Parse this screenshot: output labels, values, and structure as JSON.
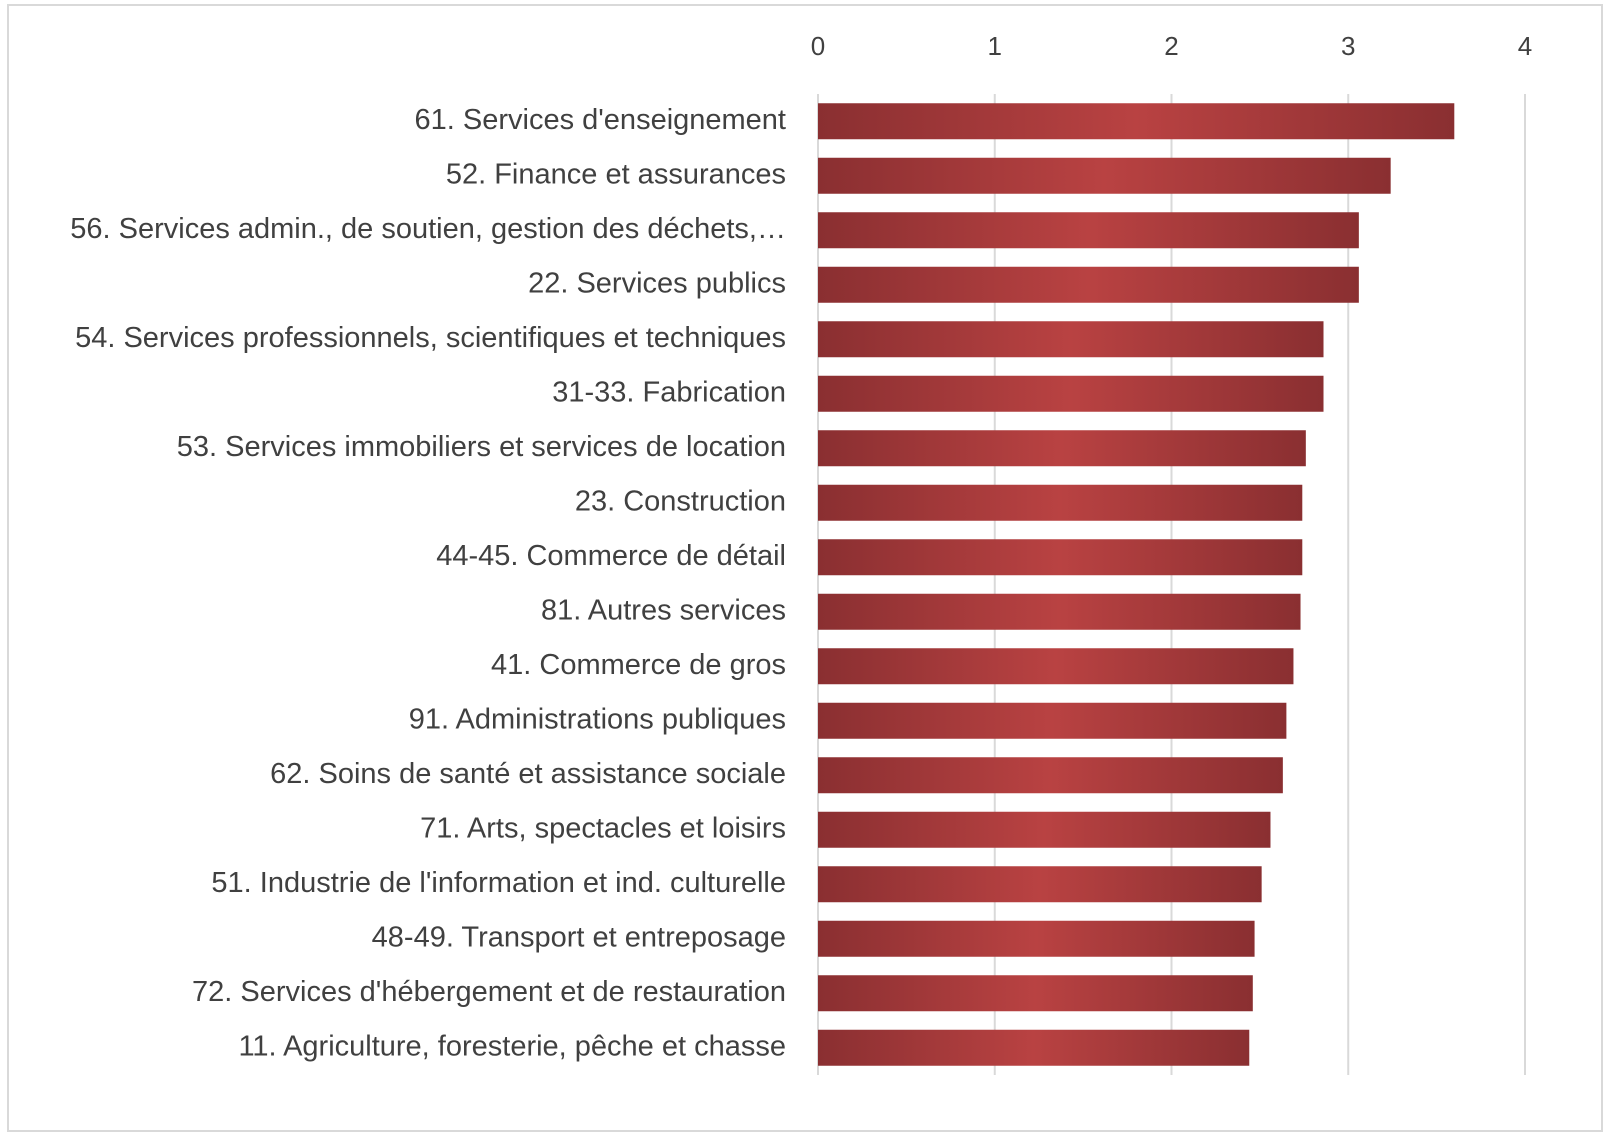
{
  "chart_data": {
    "type": "bar",
    "orientation": "horizontal",
    "categories": [
      "61. Services d'enseignement",
      "52. Finance et assurances",
      "56. Services admin., de soutien, gestion des déchets,…",
      "22. Services publics",
      "54. Services professionnels, scientifiques et techniques",
      "31-33. Fabrication",
      "53. Services immobiliers et services de location",
      "23. Construction",
      "44-45. Commerce de détail",
      "81. Autres services",
      "41. Commerce de gros",
      "91. Administrations publiques",
      "62. Soins de santé et assistance sociale",
      "71. Arts, spectacles et loisirs",
      "51. Industrie de l'information et ind. culturelle",
      "48-49. Transport et entreposage",
      "72. Services d'hébergement et de restauration",
      "11. Agriculture, foresterie, pêche et chasse"
    ],
    "values": [
      3.6,
      3.24,
      3.06,
      3.06,
      2.86,
      2.86,
      2.76,
      2.74,
      2.74,
      2.73,
      2.69,
      2.65,
      2.63,
      2.56,
      2.51,
      2.47,
      2.46,
      2.44
    ],
    "color": "#a63a3b",
    "xlim": [
      0,
      4
    ],
    "xticks": [
      0,
      1,
      2,
      3,
      4
    ],
    "grid": true
  }
}
